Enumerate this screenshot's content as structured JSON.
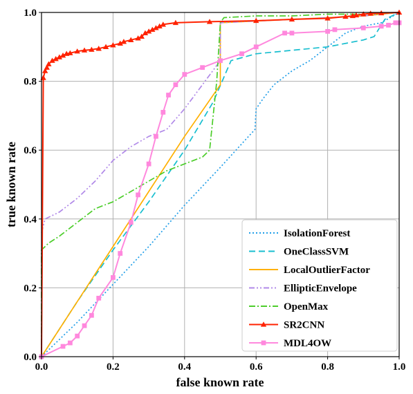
{
  "chart_data": {
    "type": "line",
    "title": "",
    "xlabel": "false known rate",
    "ylabel": "true known rate",
    "xlim": [
      0,
      1
    ],
    "ylim": [
      0,
      1
    ],
    "xticks": [
      "0.0",
      "0.2",
      "0.4",
      "0.6",
      "0.8",
      "1.0"
    ],
    "yticks": [
      "0.0",
      "0.2",
      "0.4",
      "0.6",
      "0.8",
      "1.0"
    ],
    "grid": true,
    "legend_position": "bottom-right",
    "series": [
      {
        "name": "IsolationForest",
        "color": "#1f9ee8",
        "style": "dotted",
        "marker": "none",
        "points": [
          [
            0,
            0
          ],
          [
            0.1,
            0.1
          ],
          [
            0.2,
            0.21
          ],
          [
            0.3,
            0.32
          ],
          [
            0.4,
            0.44
          ],
          [
            0.5,
            0.55
          ],
          [
            0.57,
            0.63
          ],
          [
            0.597,
            0.66
          ],
          [
            0.6,
            0.72
          ],
          [
            0.62,
            0.75
          ],
          [
            0.65,
            0.79
          ],
          [
            0.7,
            0.83
          ],
          [
            0.75,
            0.86
          ],
          [
            0.8,
            0.9
          ],
          [
            0.85,
            0.94
          ],
          [
            0.9,
            0.96
          ],
          [
            0.95,
            0.97
          ],
          [
            1.0,
            1.0
          ]
        ]
      },
      {
        "name": "OneClassSVM",
        "color": "#17becf",
        "style": "dashed",
        "marker": "none",
        "points": [
          [
            0,
            0
          ],
          [
            0.1,
            0.16
          ],
          [
            0.2,
            0.31
          ],
          [
            0.3,
            0.45
          ],
          [
            0.4,
            0.6
          ],
          [
            0.48,
            0.74
          ],
          [
            0.53,
            0.86
          ],
          [
            0.6,
            0.88
          ],
          [
            0.7,
            0.89
          ],
          [
            0.8,
            0.9
          ],
          [
            0.9,
            0.92
          ],
          [
            0.93,
            0.93
          ],
          [
            0.96,
            0.98
          ],
          [
            1.0,
            1.0
          ]
        ]
      },
      {
        "name": "LocalOutlierFactor",
        "color": "#ffb000",
        "style": "solid",
        "marker": "none",
        "points": [
          [
            0,
            0
          ],
          [
            0.1,
            0.16
          ],
          [
            0.2,
            0.32
          ],
          [
            0.3,
            0.48
          ],
          [
            0.4,
            0.64
          ],
          [
            0.5,
            0.79
          ],
          [
            0.5,
            0.97
          ],
          [
            0.6,
            0.975
          ],
          [
            0.7,
            0.98
          ],
          [
            0.8,
            0.985
          ],
          [
            0.9,
            0.99
          ],
          [
            1.0,
            1.0
          ]
        ]
      },
      {
        "name": "EllipticEnvelope",
        "color": "#b088e8",
        "style": "dashdotdot",
        "marker": "none",
        "points": [
          [
            0,
            0.36
          ],
          [
            0.01,
            0.4
          ],
          [
            0.05,
            0.42
          ],
          [
            0.1,
            0.46
          ],
          [
            0.15,
            0.51
          ],
          [
            0.2,
            0.57
          ],
          [
            0.25,
            0.61
          ],
          [
            0.3,
            0.64
          ],
          [
            0.35,
            0.66
          ],
          [
            0.4,
            0.72
          ],
          [
            0.45,
            0.79
          ],
          [
            0.5,
            0.86
          ],
          [
            0.5,
            0.97
          ],
          [
            0.6,
            0.975
          ],
          [
            0.7,
            0.98
          ],
          [
            0.8,
            0.985
          ],
          [
            0.9,
            0.99
          ],
          [
            1.0,
            1.0
          ]
        ]
      },
      {
        "name": "OpenMax",
        "color": "#4ccd2a",
        "style": "dashdot",
        "marker": "none",
        "points": [
          [
            0,
            0
          ],
          [
            0,
            0.31
          ],
          [
            0.02,
            0.33
          ],
          [
            0.05,
            0.35
          ],
          [
            0.1,
            0.39
          ],
          [
            0.15,
            0.43
          ],
          [
            0.2,
            0.45
          ],
          [
            0.25,
            0.48
          ],
          [
            0.3,
            0.51
          ],
          [
            0.35,
            0.54
          ],
          [
            0.4,
            0.56
          ],
          [
            0.45,
            0.58
          ],
          [
            0.47,
            0.6
          ],
          [
            0.49,
            0.8
          ],
          [
            0.5,
            0.97
          ],
          [
            0.51,
            0.985
          ],
          [
            0.6,
            0.99
          ],
          [
            0.7,
            0.99
          ],
          [
            0.8,
            0.995
          ],
          [
            0.9,
            0.995
          ],
          [
            1.0,
            1.0
          ]
        ]
      },
      {
        "name": "SR2CNN",
        "color": "#ff2200",
        "style": "solid",
        "marker": "triangle",
        "points": [
          [
            0,
            0
          ],
          [
            0.005,
            0.81
          ],
          [
            0.01,
            0.83
          ],
          [
            0.015,
            0.84
          ],
          [
            0.02,
            0.85
          ],
          [
            0.03,
            0.86
          ],
          [
            0.04,
            0.865
          ],
          [
            0.05,
            0.87
          ],
          [
            0.06,
            0.875
          ],
          [
            0.07,
            0.88
          ],
          [
            0.08,
            0.882
          ],
          [
            0.1,
            0.887
          ],
          [
            0.12,
            0.89
          ],
          [
            0.14,
            0.892
          ],
          [
            0.16,
            0.895
          ],
          [
            0.18,
            0.9
          ],
          [
            0.2,
            0.905
          ],
          [
            0.22,
            0.91
          ],
          [
            0.23,
            0.915
          ],
          [
            0.25,
            0.92
          ],
          [
            0.27,
            0.925
          ],
          [
            0.28,
            0.93
          ],
          [
            0.29,
            0.94
          ],
          [
            0.3,
            0.945
          ],
          [
            0.31,
            0.95
          ],
          [
            0.32,
            0.955
          ],
          [
            0.33,
            0.96
          ],
          [
            0.34,
            0.965
          ],
          [
            0.375,
            0.97
          ],
          [
            0.47,
            0.973
          ],
          [
            0.6,
            0.976
          ],
          [
            0.7,
            0.98
          ],
          [
            0.8,
            0.983
          ],
          [
            0.85,
            0.988
          ],
          [
            0.87,
            0.99
          ],
          [
            0.88,
            0.992
          ],
          [
            0.9,
            0.995
          ],
          [
            0.92,
            0.997
          ],
          [
            0.95,
            0.998
          ],
          [
            1.0,
            1.0
          ]
        ]
      },
      {
        "name": "MDL4OW",
        "color": "#ff88dd",
        "style": "solid",
        "marker": "square",
        "points": [
          [
            0,
            0
          ],
          [
            0.06,
            0.03
          ],
          [
            0.08,
            0.04
          ],
          [
            0.1,
            0.06
          ],
          [
            0.12,
            0.09
          ],
          [
            0.14,
            0.12
          ],
          [
            0.16,
            0.17
          ],
          [
            0.2,
            0.23
          ],
          [
            0.22,
            0.3
          ],
          [
            0.25,
            0.39
          ],
          [
            0.27,
            0.47
          ],
          [
            0.3,
            0.56
          ],
          [
            0.32,
            0.64
          ],
          [
            0.34,
            0.71
          ],
          [
            0.355,
            0.76
          ],
          [
            0.375,
            0.79
          ],
          [
            0.4,
            0.82
          ],
          [
            0.45,
            0.84
          ],
          [
            0.5,
            0.86
          ],
          [
            0.56,
            0.88
          ],
          [
            0.6,
            0.9
          ],
          [
            0.68,
            0.94
          ],
          [
            0.7,
            0.94
          ],
          [
            0.8,
            0.945
          ],
          [
            0.82,
            0.95
          ],
          [
            0.9,
            0.955
          ],
          [
            0.95,
            0.96
          ],
          [
            0.97,
            0.963
          ],
          [
            0.99,
            0.97
          ],
          [
            1.0,
            0.97
          ]
        ]
      }
    ]
  }
}
